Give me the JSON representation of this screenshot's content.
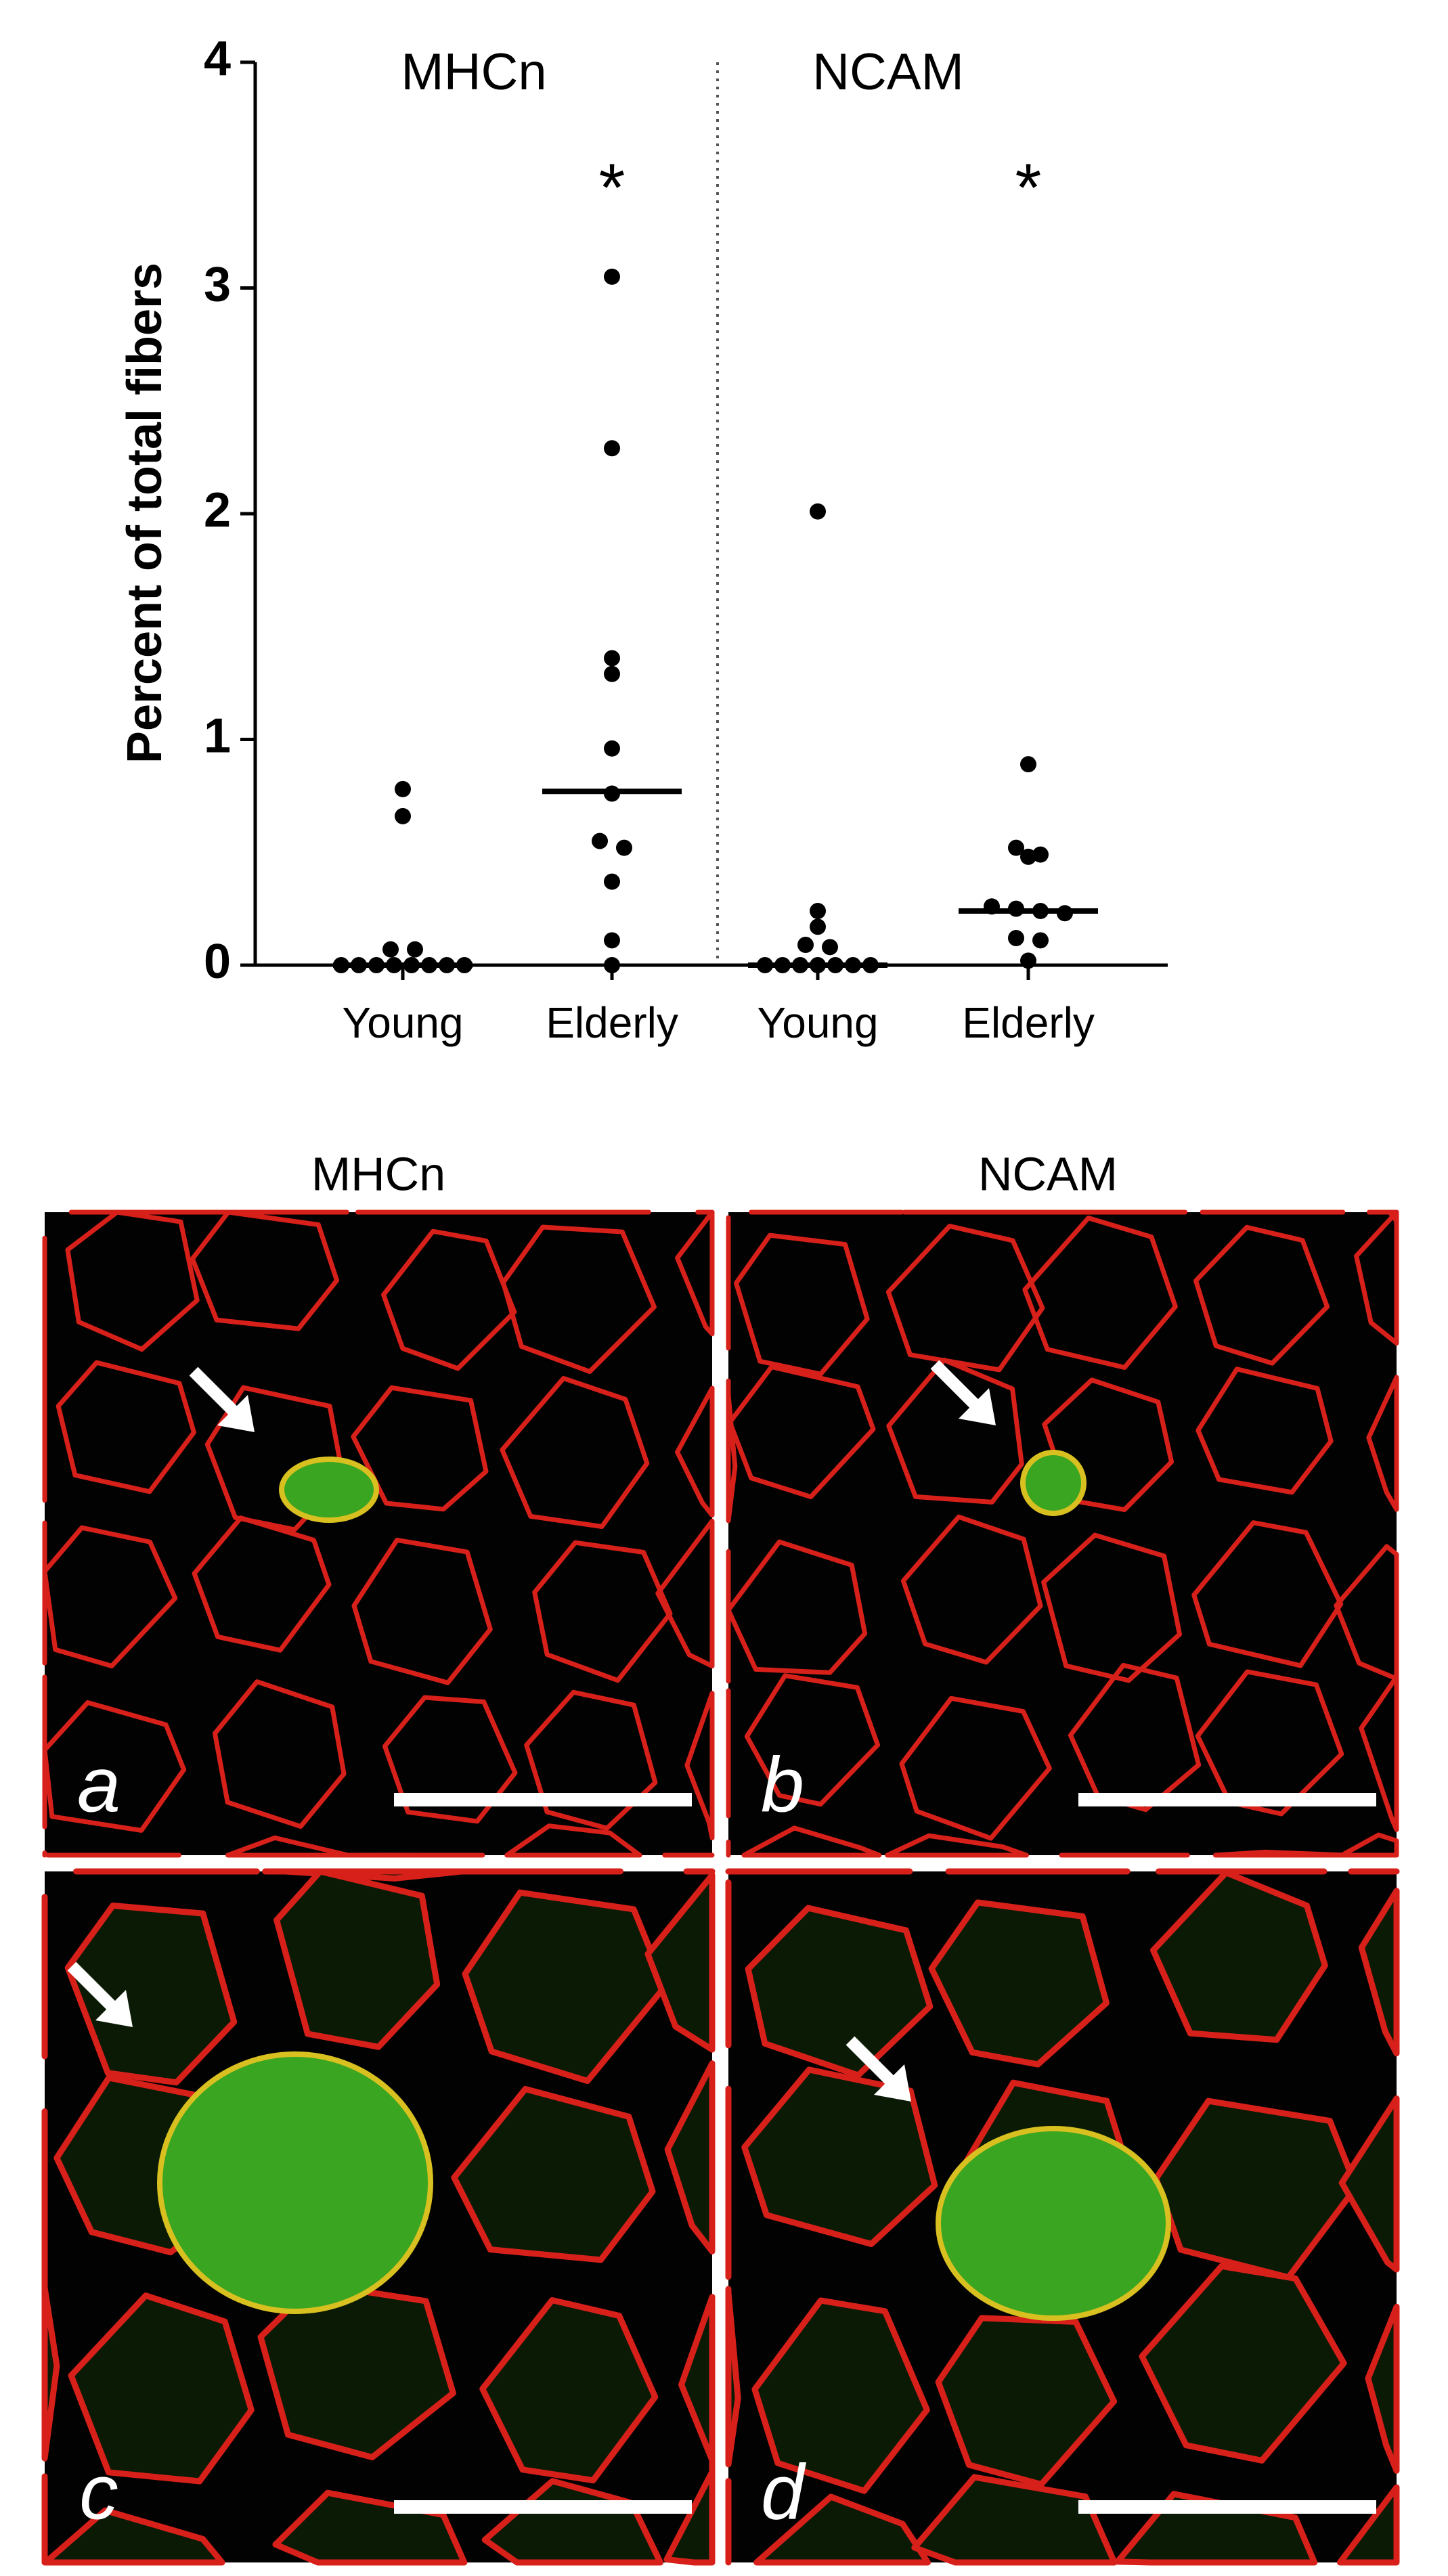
{
  "chart_data": {
    "type": "strip",
    "ylabel": "Percent of total fibers",
    "groups": [
      "MHCn",
      "NCAM"
    ],
    "categories": [
      "Young",
      "Elderly",
      "Young",
      "Elderly"
    ],
    "points": [
      [
        0.78,
        0.66,
        0.07,
        0.07,
        0,
        0,
        0,
        0,
        0,
        0,
        0,
        0
      ],
      [
        3.05,
        2.29,
        1.36,
        1.29,
        0.96,
        0.76,
        0.55,
        0.52,
        0.37,
        0.11,
        0
      ],
      [
        2.01,
        0.24,
        0.17,
        0.09,
        0.08,
        0,
        0,
        0,
        0,
        0,
        0,
        0
      ],
      [
        0.89,
        0.52,
        0.49,
        0.48,
        0.26,
        0.25,
        0.24,
        0.23,
        0.12,
        0.11,
        0.02
      ]
    ],
    "medians": [
      0,
      0.77,
      0,
      0.24
    ],
    "annotations": [
      "*",
      "*"
    ],
    "color": "#000000",
    "ylim": [
      0,
      4
    ],
    "yticks": [
      0,
      1,
      2,
      3,
      4
    ]
  },
  "panels": {
    "labels": [
      "a",
      "b",
      "c",
      "d"
    ]
  }
}
